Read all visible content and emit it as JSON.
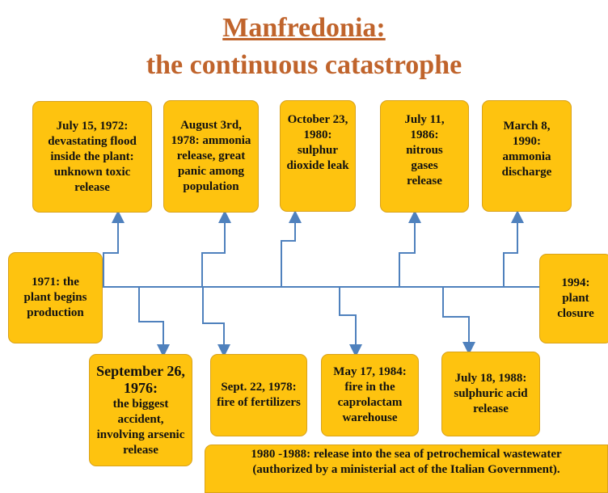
{
  "header": {
    "title_line1": "Manfredonia:",
    "title_line2": "the continuous catastrophe"
  },
  "events": [
    {
      "text": "July 15, 1972: devastating flood inside the plant: unknown toxic release"
    },
    {
      "text": "August 3rd, 1978: ammonia release, great panic among population"
    },
    {
      "text": "October 23, 1980: sulphur dioxide leak"
    },
    {
      "text": "July 11, 1986: nitrous gases release"
    },
    {
      "text": "March 8, 1990: ammonia discharge"
    },
    {
      "text": "1971: the plant begins production"
    },
    {
      "text": "1994: plant closure"
    },
    {
      "date": "September 26, 1976:",
      "text": "the biggest accident, involving arsenic release"
    },
    {
      "text": "Sept. 22, 1978: fire of fertilizers"
    },
    {
      "text": "May 17, 1984: fire in the caprolactam warehouse"
    },
    {
      "text": "July 18, 1988: sulphuric acid release"
    },
    {
      "text": "1980 -1988: release into the sea of petrochemical wastewater (authorized by a ministerial act of the Italian Government)."
    }
  ]
}
